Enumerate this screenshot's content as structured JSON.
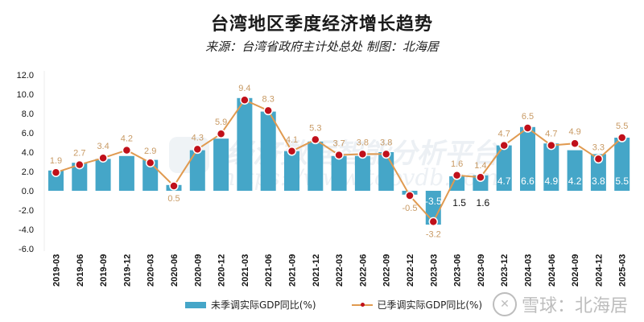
{
  "header": {
    "title": "台湾地区季度经济增长趋势",
    "subtitle": "来源：台湾省政府主计处总处 制图：北海居"
  },
  "watermark": {
    "text_cn": "经济数据智能分析平台",
    "text_url": "https://www.topvdb.com",
    "brand": "雪球：北海居"
  },
  "legend": {
    "bar_label": "未季调实际GDP同比(%)",
    "line_label": "已季调实际GDP同比(%)"
  },
  "colors": {
    "bar": "#45a6c8",
    "line": "#e09a50",
    "marker": "#c0101a",
    "line_label": "#c89a64"
  },
  "chart_data": {
    "type": "bar+line",
    "title": "台湾地区季度经济增长趋势",
    "subtitle": "来源：台湾省政府主计处总处 制图：北海居",
    "xlabel": "",
    "ylabel": "",
    "ylim": [
      -6.0,
      12.0
    ],
    "yticks": [
      "12.0",
      "10.0",
      "8.0",
      "6.0",
      "4.0",
      "2.0",
      "0.0",
      "-2.0",
      "-4.0",
      "-6.0"
    ],
    "grid": false,
    "legend_position": "bottom",
    "categories": [
      "2019-03",
      "2019-06",
      "2019-09",
      "2019-12",
      "2020-03",
      "2020-06",
      "2020-09",
      "2020-12",
      "2021-03",
      "2021-06",
      "2021-09",
      "2021-12",
      "2022-03",
      "2022-06",
      "2022-09",
      "2022-12",
      "2023-03",
      "2023-06",
      "2023-09",
      "2023-12",
      "2024-03",
      "2024-06",
      "2024-09",
      "2024-12",
      "2025-03"
    ],
    "series": [
      {
        "name": "未季调实际GDP同比(%)",
        "type": "bar",
        "values": [
          2.1,
          2.9,
          3.3,
          3.6,
          3.2,
          0.6,
          4.2,
          5.4,
          9.6,
          8.2,
          4.1,
          5.1,
          3.6,
          3.6,
          4.0,
          -0.4,
          -3.5,
          1.5,
          1.6,
          4.7,
          6.6,
          4.9,
          4.2,
          3.8,
          5.5
        ],
        "labels": [
          "",
          "",
          "",
          "",
          "",
          "",
          "",
          "",
          "",
          "",
          "",
          "",
          "",
          "",
          "",
          "",
          "-3.5",
          "1.5",
          "1.6",
          "4.7",
          "6.6",
          "4.9",
          "4.2",
          "3.8",
          "5.5"
        ]
      },
      {
        "name": "已季调实际GDP同比(%)",
        "type": "line",
        "values": [
          1.9,
          2.7,
          3.4,
          4.2,
          2.9,
          0.5,
          4.3,
          5.9,
          9.4,
          8.3,
          4.1,
          5.3,
          3.7,
          3.8,
          3.8,
          -0.5,
          -3.2,
          1.6,
          1.4,
          4.7,
          6.5,
          4.7,
          4.9,
          3.3,
          5.5
        ],
        "labels": [
          "1.9",
          "2.7",
          "3.4",
          "4.2",
          "2.9",
          "0.5",
          "4.3",
          "5.9",
          "9.4",
          "8.3",
          "4.1",
          "5.3",
          "3.7",
          "3.8",
          "3.8",
          "-0.5",
          "-3.2",
          "1.6",
          "1.4",
          "4.7",
          "6.5",
          "4.7",
          "4.9",
          "3.3",
          "5.5"
        ]
      }
    ]
  }
}
